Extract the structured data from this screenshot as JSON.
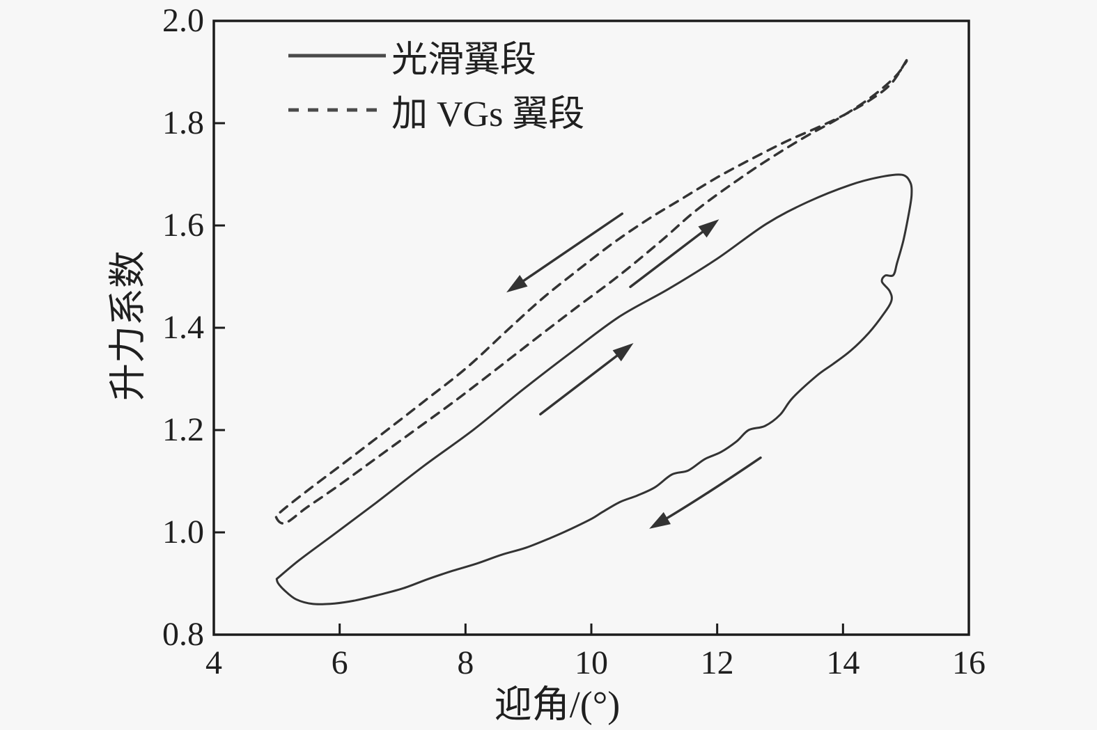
{
  "colors": {
    "background": "#f7f7f7",
    "ink": "#333333",
    "text": "#1f1f1f",
    "legend_ink": "#4a4a4a"
  },
  "legend": {
    "items": [
      {
        "label": "光滑翼段",
        "style": "solid"
      },
      {
        "label": "加 VGs 翼段",
        "style": "dashed"
      }
    ]
  },
  "chart_data": {
    "type": "line",
    "title": "",
    "xlabel": "迎角/(°)",
    "ylabel": "升力系数",
    "xlim": [
      4,
      16
    ],
    "ylim": [
      0.8,
      2.0
    ],
    "xticks": [
      4,
      6,
      8,
      10,
      12,
      14,
      16
    ],
    "yticks": [
      0.8,
      1.0,
      1.2,
      1.4,
      1.6,
      1.8,
      2.0
    ],
    "grid": false,
    "legend_position": "upper-left-inside",
    "series": [
      {
        "name": "光滑翼段",
        "style": "solid",
        "description": "hysteresis loop, pitch-up branch then return branch",
        "points": [
          [
            5.0,
            0.909
          ],
          [
            5.36,
            0.946
          ],
          [
            5.92,
            0.997
          ],
          [
            6.58,
            1.058
          ],
          [
            7.35,
            1.131
          ],
          [
            8.13,
            1.201
          ],
          [
            8.9,
            1.278
          ],
          [
            9.68,
            1.352
          ],
          [
            10.45,
            1.422
          ],
          [
            11.23,
            1.476
          ],
          [
            12.0,
            1.535
          ],
          [
            12.78,
            1.603
          ],
          [
            13.44,
            1.646
          ],
          [
            14.11,
            1.679
          ],
          [
            14.6,
            1.695
          ],
          [
            14.94,
            1.699
          ],
          [
            15.07,
            1.684
          ],
          [
            15.09,
            1.66
          ],
          [
            15.05,
            1.626
          ],
          [
            14.96,
            1.571
          ],
          [
            14.86,
            1.527
          ],
          [
            14.8,
            1.503
          ],
          [
            14.67,
            1.502
          ],
          [
            14.62,
            1.49
          ],
          [
            14.74,
            1.472
          ],
          [
            14.77,
            1.453
          ],
          [
            14.64,
            1.426
          ],
          [
            14.41,
            1.39
          ],
          [
            14.13,
            1.356
          ],
          [
            13.84,
            1.329
          ],
          [
            13.58,
            1.306
          ],
          [
            13.2,
            1.263
          ],
          [
            13.0,
            1.23
          ],
          [
            12.76,
            1.208
          ],
          [
            12.5,
            1.2
          ],
          [
            12.31,
            1.178
          ],
          [
            12.06,
            1.157
          ],
          [
            11.8,
            1.143
          ],
          [
            11.54,
            1.121
          ],
          [
            11.28,
            1.113
          ],
          [
            11.01,
            1.088
          ],
          [
            10.73,
            1.072
          ],
          [
            10.45,
            1.059
          ],
          [
            10.18,
            1.04
          ],
          [
            10.01,
            1.027
          ],
          [
            9.68,
            1.007
          ],
          [
            9.35,
            0.989
          ],
          [
            8.96,
            0.97
          ],
          [
            8.57,
            0.956
          ],
          [
            8.18,
            0.939
          ],
          [
            7.8,
            0.925
          ],
          [
            7.41,
            0.909
          ],
          [
            7.02,
            0.891
          ],
          [
            6.63,
            0.878
          ],
          [
            6.25,
            0.867
          ],
          [
            5.92,
            0.861
          ],
          [
            5.58,
            0.86
          ],
          [
            5.31,
            0.869
          ],
          [
            5.12,
            0.887
          ],
          [
            5.02,
            0.901
          ],
          [
            5.0,
            0.909
          ]
        ]
      },
      {
        "name": "加 VGs 翼段",
        "style": "dashed",
        "description": "narrow hysteresis loop, return branch from tip then pitch-up branch",
        "points": [
          [
            15.01,
            1.923
          ],
          [
            14.77,
            1.878
          ],
          [
            14.44,
            1.846
          ],
          [
            14.0,
            1.815
          ],
          [
            13.55,
            1.789
          ],
          [
            13.11,
            1.765
          ],
          [
            12.56,
            1.731
          ],
          [
            12.0,
            1.694
          ],
          [
            11.45,
            1.653
          ],
          [
            10.9,
            1.612
          ],
          [
            10.34,
            1.565
          ],
          [
            9.79,
            1.513
          ],
          [
            9.24,
            1.459
          ],
          [
            8.68,
            1.397
          ],
          [
            8.02,
            1.322
          ],
          [
            7.35,
            1.257
          ],
          [
            6.69,
            1.194
          ],
          [
            6.03,
            1.132
          ],
          [
            5.47,
            1.08
          ],
          [
            5.07,
            1.041
          ],
          [
            4.99,
            1.03
          ],
          [
            5.13,
            1.018
          ],
          [
            5.47,
            1.048
          ],
          [
            5.92,
            1.086
          ],
          [
            6.47,
            1.135
          ],
          [
            7.13,
            1.194
          ],
          [
            7.8,
            1.254
          ],
          [
            8.46,
            1.316
          ],
          [
            9.13,
            1.38
          ],
          [
            9.79,
            1.442
          ],
          [
            10.45,
            1.503
          ],
          [
            11.12,
            1.571
          ],
          [
            11.67,
            1.63
          ],
          [
            12.34,
            1.69
          ],
          [
            12.89,
            1.735
          ],
          [
            13.44,
            1.776
          ],
          [
            13.94,
            1.81
          ],
          [
            14.44,
            1.85
          ],
          [
            14.83,
            1.891
          ],
          [
            15.01,
            1.921
          ]
        ]
      }
    ],
    "arrows": [
      {
        "from": [
          10.49,
          1.623
        ],
        "to": [
          8.65,
          1.469
        ]
      },
      {
        "from": [
          10.62,
          1.48
        ],
        "to": [
          12.03,
          1.612
        ]
      },
      {
        "from": [
          9.19,
          1.231
        ],
        "to": [
          10.67,
          1.37
        ]
      },
      {
        "from": [
          12.69,
          1.146
        ],
        "via": [
          11.78,
          1.07
        ],
        "to": [
          10.92,
          1.007
        ]
      }
    ]
  }
}
